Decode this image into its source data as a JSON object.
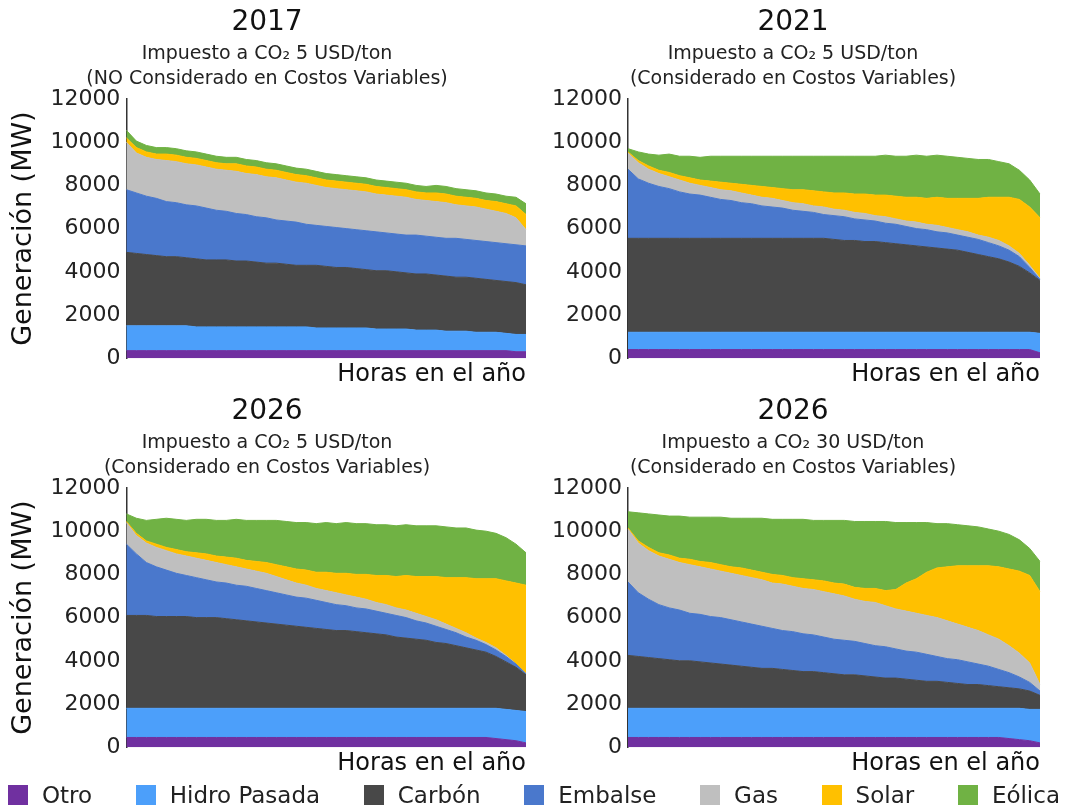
{
  "chart_data": [
    {
      "type": "area",
      "title": "2017",
      "subtitle": "Impuesto a CO₂ 5 USD/ton\n(NO Considerado en Costos Variables)",
      "xlabel": "Horas en el año",
      "ylabel": "Generación (MW)",
      "stacked": true,
      "ylim": [
        0,
        12000
      ],
      "yticks": [
        0,
        2000,
        4000,
        6000,
        8000,
        10000,
        12000
      ],
      "categories": [
        null,
        null,
        null,
        null,
        null,
        null,
        null,
        null,
        null,
        null,
        null,
        null,
        null,
        null,
        null,
        null,
        null,
        null,
        null,
        null,
        null,
        null,
        null,
        null,
        null,
        null,
        null,
        null,
        null,
        null,
        null,
        null,
        null,
        null,
        null,
        null,
        null,
        null,
        null,
        null,
        null
      ],
      "series": [
        {
          "color": "#7030a0",
          "values": [
            350,
            350,
            350,
            350,
            350,
            350,
            350,
            350,
            350,
            350,
            350,
            350,
            350,
            350,
            350,
            350,
            350,
            350,
            350,
            350,
            350,
            350,
            350,
            350,
            350,
            350,
            350,
            350,
            350,
            350,
            350,
            350,
            350,
            350,
            350,
            350,
            350,
            350,
            350,
            300,
            300
          ]
        },
        {
          "color": "#4c9ffa",
          "values": [
            1150,
            1150,
            1150,
            1150,
            1150,
            1150,
            1150,
            1100,
            1100,
            1100,
            1100,
            1100,
            1100,
            1100,
            1100,
            1100,
            1100,
            1100,
            1100,
            1050,
            1050,
            1050,
            1050,
            1050,
            1050,
            1000,
            1000,
            1000,
            1000,
            950,
            950,
            950,
            900,
            900,
            900,
            850,
            850,
            850,
            800,
            800,
            800
          ]
        },
        {
          "color": "#484848",
          "values": [
            3400,
            3350,
            3300,
            3250,
            3200,
            3200,
            3150,
            3150,
            3100,
            3100,
            3100,
            3050,
            3050,
            3000,
            2950,
            2950,
            2900,
            2850,
            2850,
            2900,
            2850,
            2800,
            2800,
            2750,
            2700,
            2700,
            2700,
            2650,
            2600,
            2600,
            2600,
            2550,
            2550,
            2500,
            2500,
            2500,
            2450,
            2400,
            2400,
            2400,
            2300
          ]
        },
        {
          "color": "#4a78cc",
          "values": [
            2900,
            2800,
            2700,
            2650,
            2550,
            2500,
            2450,
            2450,
            2400,
            2300,
            2250,
            2200,
            2150,
            2100,
            2100,
            2000,
            2000,
            2000,
            1900,
            1850,
            1850,
            1850,
            1800,
            1800,
            1800,
            1800,
            1750,
            1750,
            1750,
            1800,
            1750,
            1750,
            1750,
            1800,
            1750,
            1750,
            1750,
            1750,
            1750,
            1750,
            1800
          ]
        },
        {
          "color": "#bfbfbf",
          "values": [
            2200,
            1850,
            1800,
            1800,
            1900,
            1900,
            1900,
            1900,
            1900,
            1900,
            1900,
            1950,
            1900,
            1950,
            1900,
            1950,
            1900,
            1850,
            1900,
            1850,
            1800,
            1800,
            1800,
            1800,
            1800,
            1750,
            1750,
            1750,
            1750,
            1650,
            1650,
            1650,
            1650,
            1550,
            1550,
            1550,
            1500,
            1450,
            1400,
            1250,
            750
          ]
        },
        {
          "color": "#ffc000",
          "values": [
            200,
            250,
            250,
            250,
            300,
            300,
            300,
            300,
            300,
            300,
            300,
            350,
            350,
            350,
            350,
            350,
            350,
            350,
            350,
            350,
            350,
            350,
            350,
            350,
            350,
            350,
            350,
            350,
            350,
            350,
            350,
            400,
            400,
            400,
            400,
            400,
            400,
            450,
            450,
            550,
            700
          ]
        },
        {
          "color": "#70b244",
          "values": [
            350,
            300,
            300,
            300,
            300,
            300,
            300,
            300,
            300,
            300,
            300,
            300,
            300,
            300,
            300,
            300,
            300,
            300,
            300,
            300,
            300,
            300,
            300,
            300,
            300,
            300,
            300,
            300,
            300,
            300,
            300,
            350,
            350,
            350,
            350,
            350,
            350,
            350,
            350,
            400,
            500
          ]
        }
      ]
    },
    {
      "type": "area",
      "title": "2021",
      "subtitle": "Impuesto a CO₂ 5 USD/ton\n(Considerado en Costos Variables)",
      "xlabel": "Horas en el año",
      "stacked": true,
      "ylim": [
        0,
        12000
      ],
      "yticks": [
        0,
        2000,
        4000,
        6000,
        8000,
        10000,
        12000
      ],
      "categories": [
        null,
        null,
        null,
        null,
        null,
        null,
        null,
        null,
        null,
        null,
        null,
        null,
        null,
        null,
        null,
        null,
        null,
        null,
        null,
        null,
        null,
        null,
        null,
        null,
        null,
        null,
        null,
        null,
        null,
        null,
        null,
        null,
        null,
        null,
        null,
        null,
        null,
        null,
        null,
        null,
        null
      ],
      "series": [
        {
          "color": "#7030a0",
          "values": [
            400,
            400,
            400,
            400,
            400,
            400,
            400,
            400,
            400,
            400,
            400,
            400,
            400,
            400,
            400,
            400,
            400,
            400,
            400,
            400,
            400,
            400,
            400,
            400,
            400,
            400,
            400,
            400,
            400,
            400,
            400,
            400,
            400,
            400,
            400,
            400,
            400,
            400,
            400,
            400,
            250
          ]
        },
        {
          "color": "#4c9ffa",
          "values": [
            800,
            800,
            800,
            800,
            800,
            800,
            800,
            800,
            800,
            800,
            800,
            800,
            800,
            800,
            800,
            800,
            800,
            800,
            800,
            800,
            800,
            800,
            800,
            800,
            800,
            800,
            800,
            800,
            800,
            800,
            800,
            800,
            800,
            800,
            800,
            800,
            800,
            800,
            800,
            800,
            900
          ]
        },
        {
          "color": "#484848",
          "values": [
            4350,
            4350,
            4350,
            4350,
            4350,
            4350,
            4350,
            4350,
            4350,
            4350,
            4350,
            4350,
            4350,
            4350,
            4350,
            4350,
            4350,
            4350,
            4350,
            4350,
            4300,
            4250,
            4250,
            4200,
            4200,
            4150,
            4100,
            4050,
            4000,
            3950,
            3900,
            3850,
            3800,
            3700,
            3600,
            3500,
            3400,
            3250,
            3050,
            2750,
            2450
          ]
        },
        {
          "color": "#4a78cc",
          "values": [
            3200,
            2750,
            2550,
            2400,
            2300,
            2150,
            2050,
            2000,
            1900,
            1800,
            1750,
            1650,
            1600,
            1500,
            1450,
            1400,
            1300,
            1250,
            1200,
            1100,
            1100,
            1100,
            1000,
            1000,
            950,
            900,
            900,
            850,
            800,
            800,
            750,
            750,
            700,
            700,
            700,
            650,
            600,
            550,
            450,
            250,
            50
          ]
        },
        {
          "color": "#bfbfbf",
          "values": [
            750,
            750,
            650,
            600,
            550,
            550,
            500,
            450,
            450,
            450,
            450,
            450,
            400,
            400,
            400,
            350,
            350,
            350,
            300,
            350,
            300,
            300,
            300,
            300,
            250,
            300,
            250,
            250,
            300,
            250,
            300,
            250,
            250,
            250,
            200,
            250,
            250,
            200,
            150,
            100,
            50
          ]
        },
        {
          "color": "#ffc000",
          "values": [
            50,
            100,
            150,
            150,
            200,
            200,
            250,
            250,
            300,
            350,
            350,
            400,
            450,
            500,
            500,
            550,
            600,
            650,
            700,
            700,
            750,
            800,
            850,
            900,
            950,
            1000,
            1050,
            1100,
            1150,
            1200,
            1300,
            1350,
            1450,
            1550,
            1700,
            1850,
            2000,
            2250,
            2500,
            2700,
            2800
          ]
        },
        {
          "color": "#70b244",
          "values": [
            150,
            400,
            550,
            700,
            850,
            900,
            1000,
            1050,
            1150,
            1200,
            1250,
            1300,
            1350,
            1400,
            1450,
            1500,
            1550,
            1550,
            1600,
            1650,
            1700,
            1700,
            1750,
            1750,
            1800,
            1850,
            1850,
            1900,
            1950,
            1950,
            1950,
            1950,
            1900,
            1850,
            1800,
            1750,
            1650,
            1550,
            1350,
            1250,
            1100
          ]
        }
      ]
    },
    {
      "type": "area",
      "title": "2026",
      "subtitle": "Impuesto a CO₂ 5 USD/ton\n(Considerado en Costos Variables)",
      "xlabel": "Horas en el año",
      "ylabel": "Generación (MW)",
      "stacked": true,
      "ylim": [
        0,
        12000
      ],
      "yticks": [
        0,
        2000,
        4000,
        6000,
        8000,
        10000,
        12000
      ],
      "categories": [
        null,
        null,
        null,
        null,
        null,
        null,
        null,
        null,
        null,
        null,
        null,
        null,
        null,
        null,
        null,
        null,
        null,
        null,
        null,
        null,
        null,
        null,
        null,
        null,
        null,
        null,
        null,
        null,
        null,
        null,
        null,
        null,
        null,
        null,
        null,
        null,
        null,
        null,
        null,
        null,
        null
      ],
      "series": [
        {
          "color": "#7030a0",
          "values": [
            450,
            450,
            450,
            450,
            450,
            450,
            450,
            450,
            450,
            450,
            450,
            450,
            450,
            450,
            450,
            450,
            450,
            450,
            450,
            450,
            450,
            450,
            450,
            450,
            450,
            450,
            450,
            450,
            450,
            450,
            450,
            450,
            450,
            450,
            450,
            450,
            450,
            400,
            350,
            300,
            200
          ]
        },
        {
          "color": "#4c9ffa",
          "values": [
            1350,
            1350,
            1350,
            1350,
            1350,
            1350,
            1350,
            1350,
            1350,
            1350,
            1350,
            1350,
            1350,
            1350,
            1350,
            1350,
            1350,
            1350,
            1350,
            1350,
            1350,
            1350,
            1350,
            1350,
            1350,
            1350,
            1350,
            1350,
            1350,
            1350,
            1350,
            1350,
            1350,
            1350,
            1350,
            1350,
            1350,
            1400,
            1400,
            1400,
            1450
          ]
        },
        {
          "color": "#484848",
          "values": [
            4300,
            4300,
            4300,
            4250,
            4250,
            4250,
            4250,
            4200,
            4200,
            4200,
            4150,
            4100,
            4050,
            4000,
            3950,
            3900,
            3850,
            3800,
            3750,
            3700,
            3650,
            3600,
            3600,
            3550,
            3500,
            3450,
            3400,
            3300,
            3250,
            3200,
            3150,
            3050,
            3000,
            2900,
            2800,
            2700,
            2600,
            2400,
            2200,
            2000,
            1700
          ]
        },
        {
          "color": "#4a78cc",
          "values": [
            3300,
            2850,
            2450,
            2300,
            2150,
            2000,
            1900,
            1850,
            1750,
            1650,
            1650,
            1600,
            1600,
            1550,
            1500,
            1450,
            1400,
            1350,
            1350,
            1300,
            1250,
            1200,
            1150,
            1100,
            1100,
            1050,
            1000,
            1000,
            950,
            850,
            800,
            750,
            650,
            600,
            500,
            450,
            350,
            300,
            250,
            150,
            50
          ]
        },
        {
          "color": "#bfbfbf",
          "values": [
            1000,
            850,
            900,
            900,
            900,
            900,
            900,
            900,
            900,
            900,
            850,
            850,
            800,
            800,
            800,
            750,
            700,
            650,
            600,
            550,
            550,
            550,
            500,
            500,
            450,
            400,
            400,
            350,
            350,
            350,
            300,
            300,
            250,
            200,
            200,
            100,
            100,
            100,
            50,
            0,
            0
          ]
        },
        {
          "color": "#ffc000",
          "values": [
            50,
            100,
            100,
            150,
            150,
            200,
            200,
            250,
            300,
            300,
            350,
            400,
            400,
            450,
            500,
            550,
            600,
            650,
            700,
            750,
            850,
            900,
            1000,
            1050,
            1150,
            1250,
            1350,
            1450,
            1600,
            1700,
            1850,
            2000,
            2150,
            2350,
            2550,
            2750,
            2950,
            3200,
            3450,
            3750,
            4100
          ]
        },
        {
          "color": "#70b244",
          "values": [
            350,
            700,
            950,
            1150,
            1350,
            1400,
            1450,
            1550,
            1600,
            1650,
            1700,
            1800,
            1850,
            1900,
            1950,
            2050,
            2100,
            2150,
            2200,
            2250,
            2300,
            2300,
            2350,
            2350,
            2350,
            2350,
            2350,
            2350,
            2350,
            2350,
            2350,
            2350,
            2350,
            2300,
            2300,
            2250,
            2200,
            2100,
            2000,
            1800,
            1500
          ]
        }
      ]
    },
    {
      "type": "area",
      "title": "2026",
      "subtitle": "Impuesto a CO₂ 30 USD/ton\n(Considerado en Costos Variables)",
      "xlabel": "Horas en el año",
      "stacked": true,
      "ylim": [
        0,
        12000
      ],
      "yticks": [
        0,
        2000,
        4000,
        6000,
        8000,
        10000,
        12000
      ],
      "legend": "bottom",
      "categories": [
        null,
        null,
        null,
        null,
        null,
        null,
        null,
        null,
        null,
        null,
        null,
        null,
        null,
        null,
        null,
        null,
        null,
        null,
        null,
        null,
        null,
        null,
        null,
        null,
        null,
        null,
        null,
        null,
        null,
        null,
        null,
        null,
        null,
        null,
        null,
        null,
        null,
        null,
        null,
        null,
        null
      ],
      "series": [
        {
          "name": "Otro",
          "color": "#7030a0",
          "values": [
            450,
            450,
            450,
            450,
            450,
            450,
            450,
            450,
            450,
            450,
            450,
            450,
            450,
            450,
            450,
            450,
            450,
            450,
            450,
            450,
            450,
            450,
            450,
            450,
            450,
            450,
            450,
            450,
            450,
            450,
            450,
            450,
            450,
            450,
            450,
            450,
            450,
            400,
            350,
            300,
            200
          ]
        },
        {
          "name": "Hidro Pasada",
          "color": "#4c9ffa",
          "values": [
            1350,
            1350,
            1350,
            1350,
            1350,
            1350,
            1350,
            1350,
            1350,
            1350,
            1350,
            1350,
            1350,
            1350,
            1350,
            1350,
            1350,
            1350,
            1350,
            1350,
            1350,
            1350,
            1350,
            1350,
            1350,
            1350,
            1350,
            1350,
            1350,
            1350,
            1350,
            1350,
            1350,
            1350,
            1350,
            1350,
            1350,
            1400,
            1450,
            1450,
            1550
          ]
        },
        {
          "name": "Carbón",
          "color": "#484848",
          "values": [
            2450,
            2400,
            2350,
            2300,
            2250,
            2200,
            2200,
            2150,
            2100,
            2050,
            2000,
            1950,
            1900,
            1850,
            1850,
            1800,
            1750,
            1700,
            1700,
            1650,
            1600,
            1550,
            1550,
            1500,
            1450,
            1400,
            1400,
            1350,
            1300,
            1250,
            1250,
            1200,
            1150,
            1100,
            1100,
            1050,
            1000,
            950,
            900,
            850,
            650
          ]
        },
        {
          "name": "Embalse",
          "color": "#4a78cc",
          "values": [
            3400,
            2950,
            2700,
            2500,
            2400,
            2350,
            2200,
            2200,
            2150,
            2150,
            2100,
            2050,
            2000,
            1950,
            1850,
            1800,
            1800,
            1750,
            1700,
            1650,
            1600,
            1600,
            1550,
            1500,
            1450,
            1450,
            1350,
            1300,
            1300,
            1250,
            1150,
            1100,
            1100,
            1050,
            950,
            900,
            800,
            700,
            550,
            400,
            200
          ]
        },
        {
          "name": "Gas",
          "color": "#bfbfbf",
          "values": [
            2450,
            2300,
            2250,
            2250,
            2250,
            2200,
            2250,
            2200,
            2200,
            2150,
            2150,
            2150,
            2150,
            2150,
            2100,
            2150,
            2100,
            2100,
            2100,
            2100,
            2100,
            2050,
            1950,
            1950,
            2000,
            1900,
            1850,
            1850,
            1800,
            1800,
            1800,
            1750,
            1650,
            1600,
            1550,
            1450,
            1400,
            1250,
            1100,
            900,
            300
          ]
        },
        {
          "name": "Solar",
          "color": "#ffc000",
          "values": [
            50,
            100,
            150,
            150,
            200,
            200,
            250,
            250,
            300,
            300,
            300,
            350,
            350,
            350,
            400,
            400,
            400,
            450,
            450,
            500,
            500,
            550,
            550,
            600,
            650,
            700,
            900,
            1300,
            1600,
            2000,
            2300,
            2500,
            2700,
            2850,
            3000,
            3200,
            3350,
            3550,
            3800,
            4050,
            4300
          ]
        },
        {
          "name": "Eólica",
          "color": "#70b244",
          "values": [
            750,
            1300,
            1550,
            1750,
            1800,
            1950,
            1950,
            2050,
            2100,
            2200,
            2250,
            2300,
            2400,
            2500,
            2550,
            2600,
            2700,
            2750,
            2750,
            2800,
            2900,
            2950,
            3050,
            3100,
            3100,
            3200,
            3100,
            2800,
            2600,
            2300,
            2050,
            2000,
            1900,
            1850,
            1800,
            1700,
            1650,
            1600,
            1450,
            1250,
            1400
          ]
        }
      ]
    }
  ]
}
